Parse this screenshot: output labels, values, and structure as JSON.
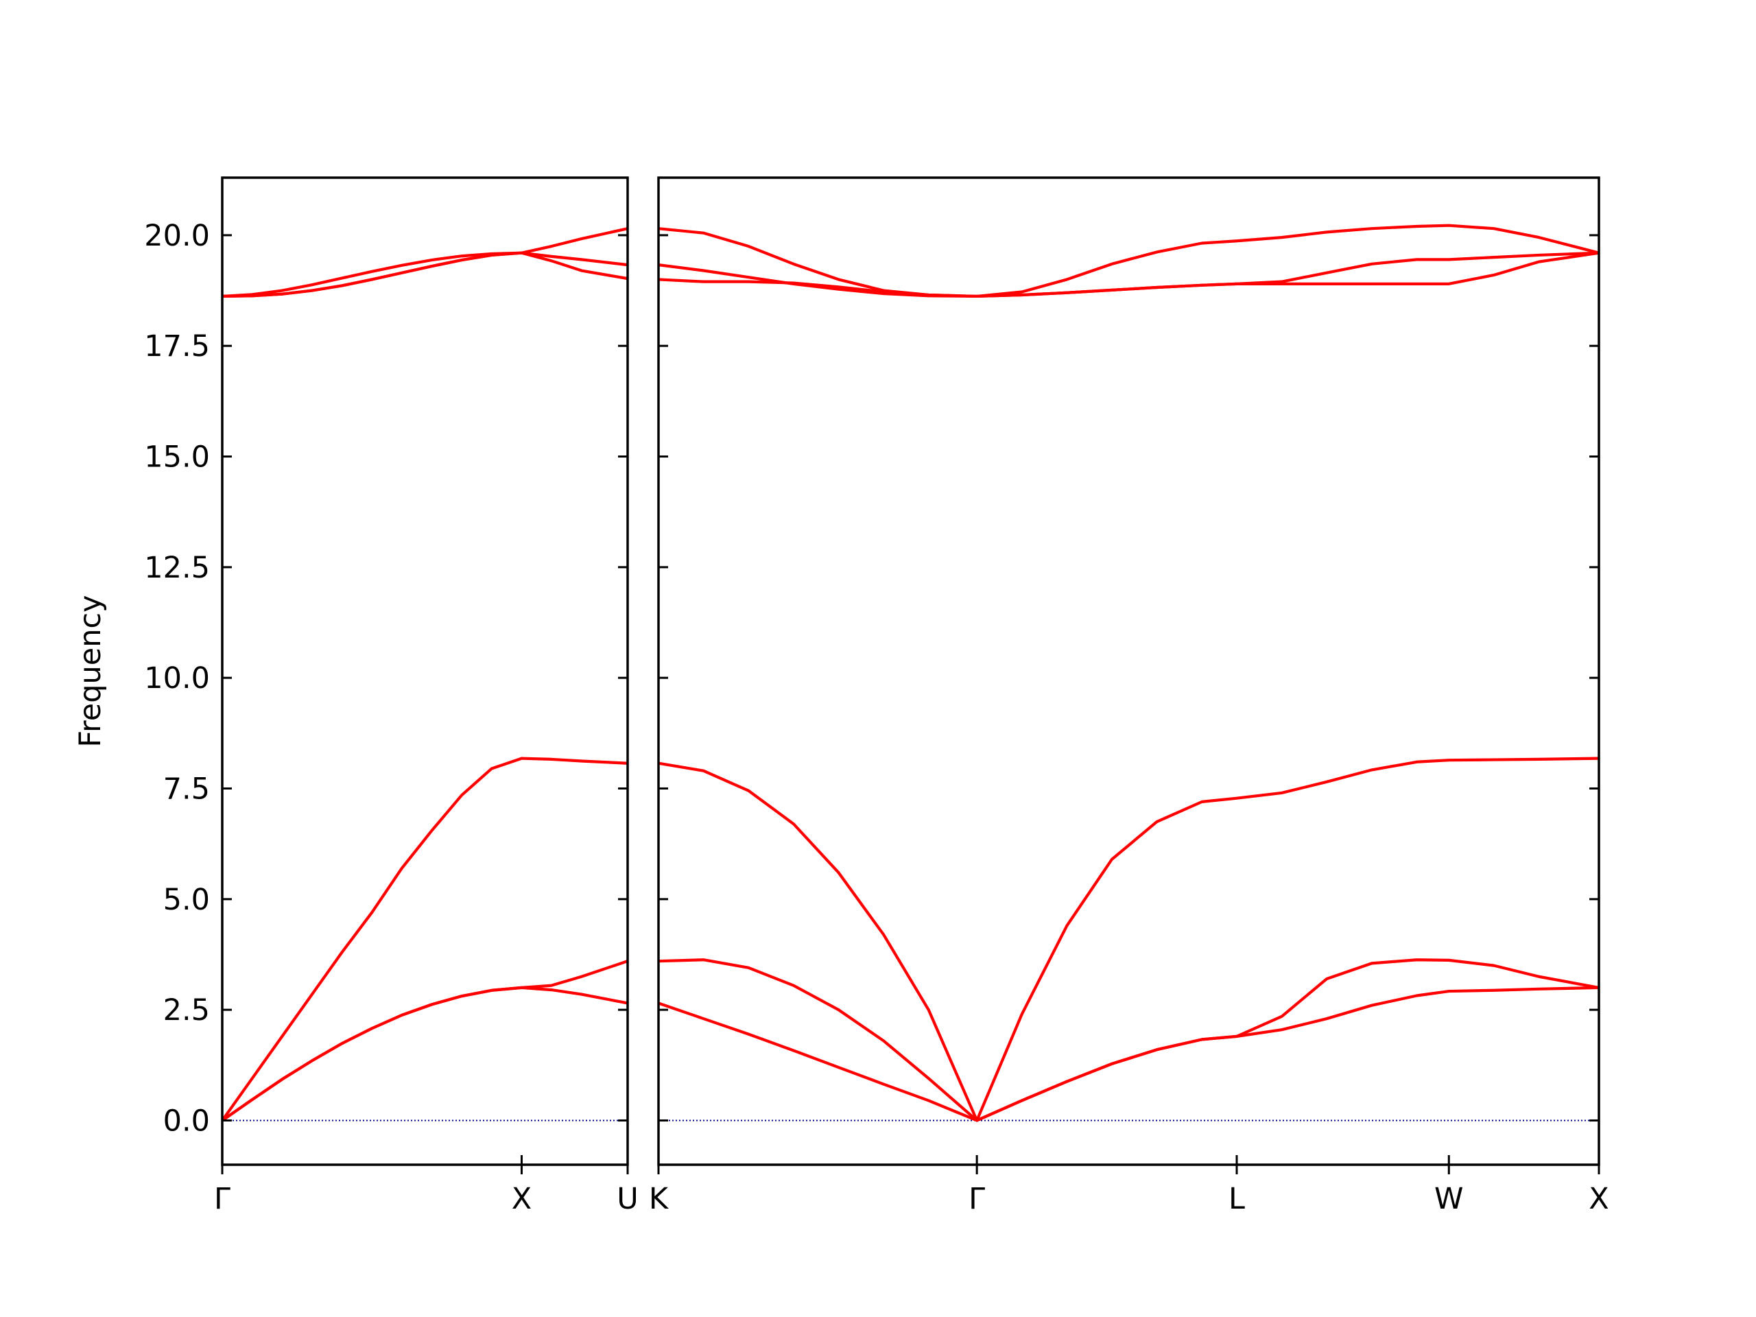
{
  "chart_data": [
    {
      "type": "line",
      "ylabel": "Frequency",
      "color": "#ff0000",
      "x": [
        0,
        0.1,
        0.2,
        0.3,
        0.4,
        0.5,
        0.6,
        0.7,
        0.8,
        0.9,
        1.0,
        1.1,
        1.2,
        1.354
      ],
      "series": [
        {
          "values": [
            0,
            0.47,
            0.93,
            1.35,
            1.74,
            2.08,
            2.38,
            2.62,
            2.81,
            2.94,
            3.0,
            2.95,
            2.85,
            2.65
          ]
        },
        {
          "values": [
            0,
            0.47,
            0.93,
            1.35,
            1.74,
            2.08,
            2.38,
            2.62,
            2.81,
            2.94,
            3.0,
            3.05,
            3.25,
            3.6
          ]
        },
        {
          "values": [
            0,
            0.95,
            1.9,
            2.85,
            3.8,
            4.7,
            5.7,
            6.55,
            7.35,
            7.95,
            8.18,
            8.16,
            8.12,
            8.07
          ]
        },
        {
          "values": [
            18.62,
            18.63,
            18.67,
            18.75,
            18.86,
            19.0,
            19.15,
            19.3,
            19.44,
            19.55,
            19.6,
            19.42,
            19.2,
            19.02
          ]
        },
        {
          "values": [
            18.62,
            18.63,
            18.67,
            18.75,
            18.86,
            19.0,
            19.15,
            19.3,
            19.44,
            19.55,
            19.6,
            19.52,
            19.45,
            19.33
          ]
        },
        {
          "values": [
            18.62,
            18.66,
            18.75,
            18.88,
            19.03,
            19.18,
            19.32,
            19.44,
            19.53,
            19.58,
            19.6,
            19.75,
            19.92,
            20.15
          ]
        }
      ],
      "xlim": [
        0,
        1.354
      ],
      "ylim": [
        -1.0,
        21.3
      ],
      "xticks": [
        {
          "value": 0,
          "label": "Γ"
        },
        {
          "value": 1.0,
          "label": "X"
        },
        {
          "value": 1.354,
          "label": "U"
        }
      ],
      "yticks": [
        {
          "value": 0,
          "label": "0.0"
        },
        {
          "value": 2.5,
          "label": "2.5"
        },
        {
          "value": 5,
          "label": "5.0"
        },
        {
          "value": 7.5,
          "label": "7.5"
        },
        {
          "value": 10,
          "label": "10.0"
        },
        {
          "value": 12.5,
          "label": "12.5"
        },
        {
          "value": 15,
          "label": "15.0"
        },
        {
          "value": 17.5,
          "label": "17.5"
        },
        {
          "value": 20,
          "label": "20.0"
        }
      ],
      "zero_line": {
        "value": 0,
        "color": "#00008b"
      }
    },
    {
      "type": "line",
      "color": "#ff0000",
      "x": [
        1.354,
        1.504,
        1.654,
        1.804,
        1.954,
        2.104,
        2.254,
        2.415,
        2.565,
        2.715,
        2.865,
        3.015,
        3.165,
        3.281,
        3.431,
        3.581,
        3.731,
        3.881,
        3.988,
        4.138,
        4.288,
        4.488
      ],
      "series": [
        {
          "values": [
            2.65,
            2.3,
            1.95,
            1.58,
            1.2,
            0.82,
            0.45,
            0,
            0.45,
            0.88,
            1.28,
            1.6,
            1.83,
            1.9,
            2.05,
            2.3,
            2.6,
            2.82,
            2.92,
            2.94,
            2.97,
            3.0
          ]
        },
        {
          "values": [
            3.6,
            3.63,
            3.45,
            3.05,
            2.5,
            1.8,
            0.95,
            0,
            0.45,
            0.88,
            1.28,
            1.6,
            1.83,
            1.9,
            2.35,
            3.2,
            3.55,
            3.63,
            3.62,
            3.5,
            3.25,
            3.0
          ]
        },
        {
          "values": [
            8.07,
            7.9,
            7.45,
            6.7,
            5.6,
            4.2,
            2.5,
            0,
            2.4,
            4.4,
            5.9,
            6.75,
            7.2,
            7.28,
            7.4,
            7.65,
            7.92,
            8.1,
            8.14,
            8.15,
            8.16,
            8.18
          ]
        },
        {
          "values": [
            19.0,
            18.95,
            18.95,
            18.92,
            18.83,
            18.72,
            18.65,
            18.62,
            18.65,
            18.7,
            18.76,
            18.82,
            18.87,
            18.9,
            18.9,
            18.9,
            18.9,
            18.9,
            18.9,
            19.1,
            19.4,
            19.6
          ]
        },
        {
          "values": [
            19.33,
            19.2,
            19.05,
            18.9,
            18.78,
            18.68,
            18.63,
            18.62,
            18.65,
            18.7,
            18.76,
            18.82,
            18.87,
            18.9,
            18.95,
            19.15,
            19.35,
            19.45,
            19.45,
            19.5,
            19.55,
            19.6
          ]
        },
        {
          "values": [
            20.15,
            20.05,
            19.75,
            19.35,
            19.0,
            18.75,
            18.65,
            18.62,
            18.72,
            19.0,
            19.35,
            19.62,
            19.82,
            19.87,
            19.95,
            20.07,
            20.15,
            20.2,
            20.22,
            20.15,
            19.95,
            19.6
          ]
        }
      ],
      "xlim": [
        1.354,
        4.488
      ],
      "ylim": [
        -1.0,
        21.3
      ],
      "xticks": [
        {
          "value": 1.354,
          "label": "K"
        },
        {
          "value": 2.415,
          "label": "Γ"
        },
        {
          "value": 3.281,
          "label": "L"
        },
        {
          "value": 3.988,
          "label": "W"
        },
        {
          "value": 4.488,
          "label": "X"
        }
      ],
      "yticks": [
        0,
        2.5,
        5,
        7.5,
        10,
        12.5,
        15,
        17.5,
        20
      ],
      "zero_line": {
        "value": 0,
        "color": "#00008b"
      }
    }
  ]
}
